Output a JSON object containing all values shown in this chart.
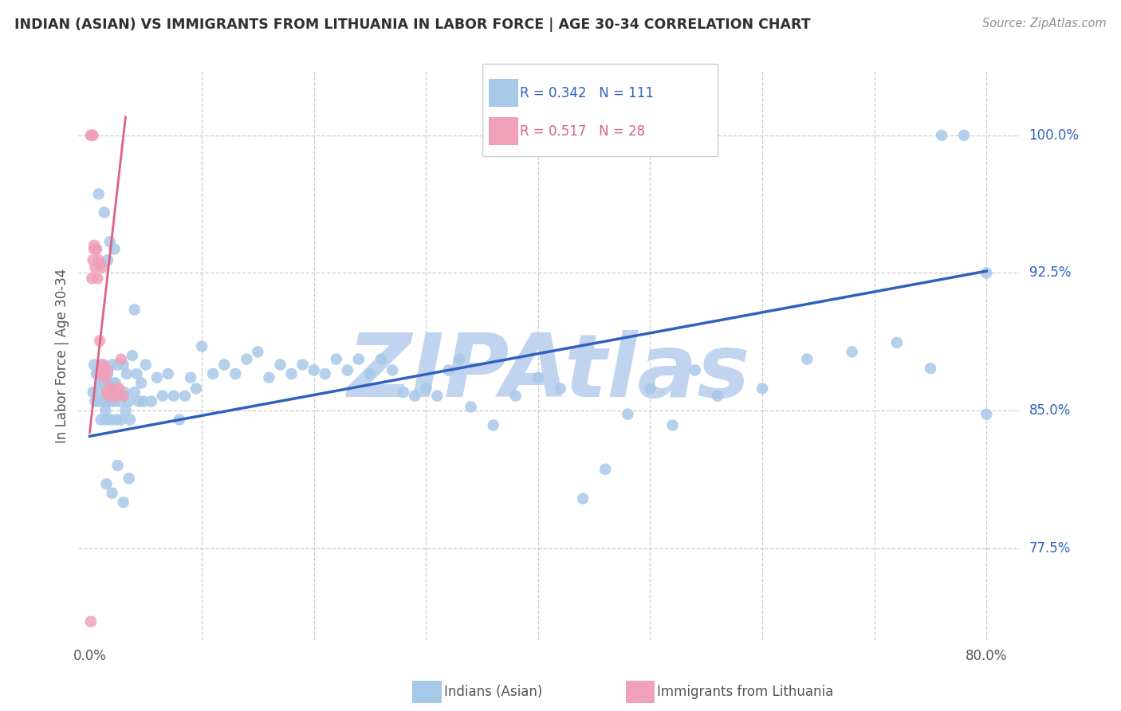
{
  "title": "INDIAN (ASIAN) VS IMMIGRANTS FROM LITHUANIA IN LABOR FORCE | AGE 30-34 CORRELATION CHART",
  "source": "Source: ZipAtlas.com",
  "ylabel": "In Labor Force | Age 30-34",
  "xlim": [
    -0.01,
    0.83
  ],
  "ylim": [
    0.725,
    1.035
  ],
  "yticks": [
    0.775,
    0.85,
    0.925,
    1.0
  ],
  "ytick_labels": [
    "77.5%",
    "85.0%",
    "92.5%",
    "100.0%"
  ],
  "xticks": [
    0.0,
    0.1,
    0.2,
    0.3,
    0.4,
    0.5,
    0.6,
    0.7,
    0.8
  ],
  "xtick_labels": [
    "0.0%",
    "",
    "",
    "",
    "",
    "",
    "",
    "",
    "80.0%"
  ],
  "legend_R1": "0.342",
  "legend_N1": "111",
  "legend_R2": "0.517",
  "legend_N2": "28",
  "blue_color": "#a8c8e8",
  "pink_color": "#f0a0b8",
  "trend_blue": "#3060c0",
  "trend_pink": "#e06080",
  "watermark": "ZIPAtlas",
  "watermark_color": "#c0d4f0",
  "title_color": "#303030",
  "source_color": "#909090",
  "blue_scatter_x": [
    0.003,
    0.004,
    0.005,
    0.006,
    0.007,
    0.008,
    0.009,
    0.01,
    0.01,
    0.011,
    0.012,
    0.012,
    0.013,
    0.014,
    0.014,
    0.015,
    0.015,
    0.016,
    0.017,
    0.018,
    0.018,
    0.019,
    0.02,
    0.021,
    0.022,
    0.023,
    0.024,
    0.025,
    0.026,
    0.027,
    0.028,
    0.03,
    0.031,
    0.032,
    0.033,
    0.035,
    0.036,
    0.038,
    0.04,
    0.042,
    0.044,
    0.046,
    0.048,
    0.05,
    0.055,
    0.06,
    0.065,
    0.07,
    0.075,
    0.08,
    0.085,
    0.09,
    0.095,
    0.1,
    0.11,
    0.12,
    0.13,
    0.14,
    0.15,
    0.16,
    0.17,
    0.18,
    0.19,
    0.2,
    0.21,
    0.22,
    0.23,
    0.24,
    0.25,
    0.26,
    0.27,
    0.28,
    0.29,
    0.3,
    0.31,
    0.32,
    0.33,
    0.34,
    0.36,
    0.38,
    0.4,
    0.42,
    0.44,
    0.46,
    0.48,
    0.5,
    0.52,
    0.54,
    0.56,
    0.6,
    0.64,
    0.68,
    0.72,
    0.75,
    0.76,
    0.78,
    0.8,
    0.8,
    0.015,
    0.02,
    0.025,
    0.03,
    0.035,
    0.04,
    0.018,
    0.022,
    0.016,
    0.013,
    0.01,
    0.008,
    0.006
  ],
  "blue_scatter_y": [
    0.86,
    0.875,
    0.855,
    0.87,
    0.87,
    0.855,
    0.865,
    0.86,
    0.845,
    0.875,
    0.855,
    0.865,
    0.855,
    0.87,
    0.85,
    0.865,
    0.845,
    0.87,
    0.855,
    0.86,
    0.855,
    0.845,
    0.875,
    0.865,
    0.855,
    0.865,
    0.845,
    0.875,
    0.86,
    0.855,
    0.845,
    0.875,
    0.86,
    0.85,
    0.87,
    0.855,
    0.845,
    0.88,
    0.86,
    0.87,
    0.855,
    0.865,
    0.855,
    0.875,
    0.855,
    0.868,
    0.858,
    0.87,
    0.858,
    0.845,
    0.858,
    0.868,
    0.862,
    0.885,
    0.87,
    0.875,
    0.87,
    0.878,
    0.882,
    0.868,
    0.875,
    0.87,
    0.875,
    0.872,
    0.87,
    0.878,
    0.872,
    0.878,
    0.87,
    0.878,
    0.872,
    0.86,
    0.858,
    0.862,
    0.858,
    0.872,
    0.878,
    0.852,
    0.842,
    0.858,
    0.868,
    0.862,
    0.802,
    0.818,
    0.848,
    0.862,
    0.842,
    0.872,
    0.858,
    0.862,
    0.878,
    0.882,
    0.887,
    0.873,
    1.0,
    1.0,
    0.925,
    0.848,
    0.81,
    0.805,
    0.82,
    0.8,
    0.813,
    0.905,
    0.942,
    0.938,
    0.932,
    0.958,
    0.93,
    0.968,
    0.938
  ],
  "pink_scatter_x": [
    0.001,
    0.002,
    0.003,
    0.004,
    0.005,
    0.006,
    0.007,
    0.008,
    0.009,
    0.01,
    0.011,
    0.012,
    0.013,
    0.014,
    0.015,
    0.016,
    0.017,
    0.018,
    0.02,
    0.022,
    0.024,
    0.026,
    0.028,
    0.03,
    0.002,
    0.003,
    0.004,
    0.001
  ],
  "pink_scatter_y": [
    0.735,
    1.0,
    1.0,
    0.938,
    0.928,
    0.938,
    0.922,
    0.932,
    0.888,
    0.87,
    0.928,
    0.875,
    0.87,
    0.868,
    0.86,
    0.872,
    0.858,
    0.862,
    0.862,
    0.858,
    0.858,
    0.862,
    0.878,
    0.858,
    0.922,
    0.932,
    0.94,
    1.0
  ],
  "blue_trend_x": [
    0.0,
    0.8
  ],
  "blue_trend_y": [
    0.836,
    0.926
  ],
  "pink_trend_x": [
    0.0,
    0.032
  ],
  "pink_trend_y": [
    0.838,
    1.01
  ]
}
